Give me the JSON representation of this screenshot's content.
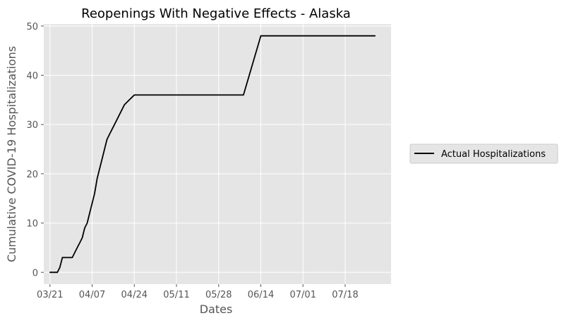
{
  "chart_data": {
    "type": "line",
    "title": "Reopenings With Negative Effects - Alaska",
    "xlabel": "Dates",
    "ylabel": "Cumulative COVID-19 Hospitalizations",
    "x_start": "03/21",
    "x_ticks": [
      "03/21",
      "04/07",
      "04/24",
      "05/11",
      "05/28",
      "06/14",
      "07/01",
      "07/18"
    ],
    "y_ticks": [
      0,
      10,
      20,
      30,
      40,
      50
    ],
    "xlim_days": [
      -2.5,
      137.5
    ],
    "ylim": [
      -2.4,
      50.4
    ],
    "grid": true,
    "legend_position": "right",
    "colors": {
      "background": "#e5e5e5",
      "grid": "#ffffff",
      "line": "#000000"
    },
    "series": [
      {
        "name": "Actual Hospitalizations",
        "color": "#000000",
        "points": [
          [
            "03/21",
            0
          ],
          [
            "03/22",
            0
          ],
          [
            "03/23",
            0
          ],
          [
            "03/24",
            0
          ],
          [
            "03/25",
            1
          ],
          [
            "03/26",
            3
          ],
          [
            "03/27",
            3
          ],
          [
            "03/28",
            3
          ],
          [
            "03/29",
            3
          ],
          [
            "03/30",
            3
          ],
          [
            "03/31",
            4
          ],
          [
            "04/01",
            5
          ],
          [
            "04/02",
            6
          ],
          [
            "04/03",
            7
          ],
          [
            "04/04",
            9
          ],
          [
            "04/05",
            10
          ],
          [
            "04/06",
            12
          ],
          [
            "04/07",
            14
          ],
          [
            "04/08",
            16
          ],
          [
            "04/09",
            19
          ],
          [
            "04/10",
            21
          ],
          [
            "04/11",
            23
          ],
          [
            "04/12",
            25
          ],
          [
            "04/13",
            27
          ],
          [
            "04/14",
            28
          ],
          [
            "04/15",
            29
          ],
          [
            "04/16",
            30
          ],
          [
            "04/17",
            31
          ],
          [
            "04/18",
            32
          ],
          [
            "04/19",
            33
          ],
          [
            "04/20",
            34
          ],
          [
            "04/21",
            34.5
          ],
          [
            "04/22",
            35
          ],
          [
            "04/23",
            35.5
          ],
          [
            "04/24",
            36
          ],
          [
            "06/07",
            36
          ],
          [
            "06/14",
            48
          ],
          [
            "07/30",
            48
          ]
        ]
      }
    ]
  }
}
